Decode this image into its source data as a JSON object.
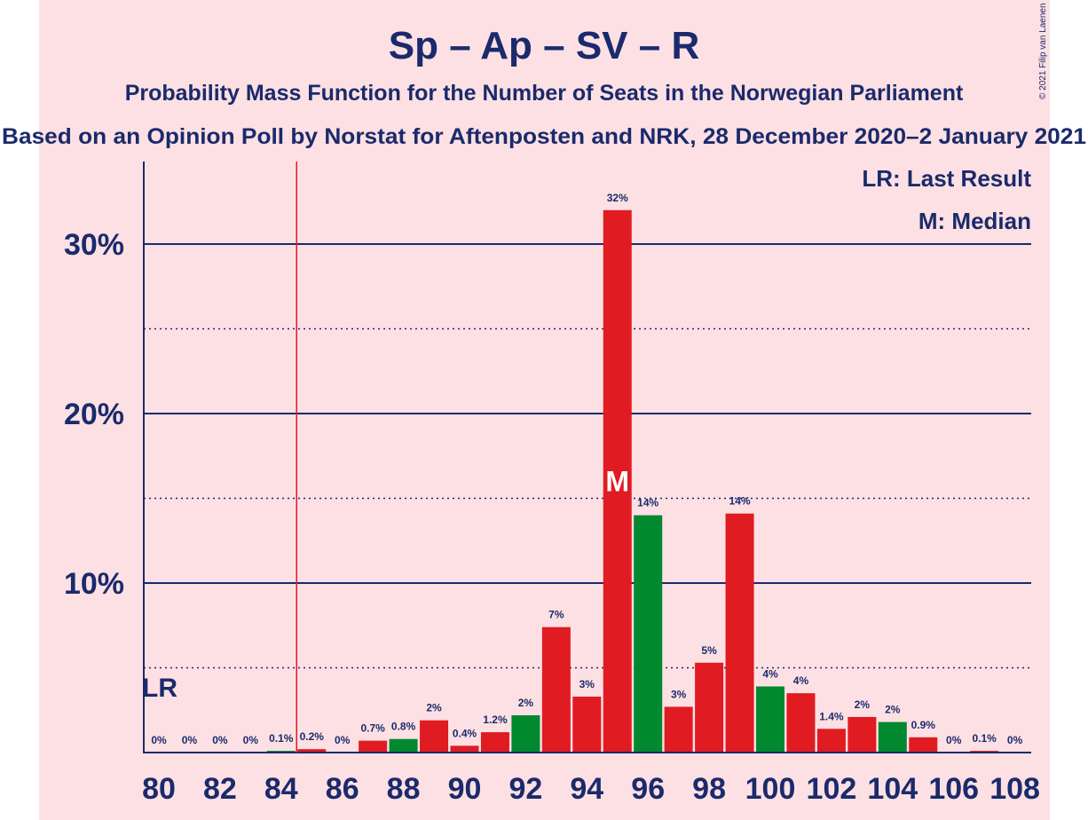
{
  "chart_data": {
    "type": "bar",
    "title": "Sp – Ap – SV – R",
    "subtitle": "Probability Mass Function for the Number of Seats in the Norwegian Parliament",
    "subtitle2": "Based on an Opinion Poll by Norstat for Aftenposten and NRK, 28 December 2020–2 January 2021",
    "copyright": "© 2021 Filip van Laenen",
    "legend": {
      "lr": "LR: Last Result",
      "m": "M: Median"
    },
    "lr_marker": "LR",
    "median_marker": "M",
    "last_result_seat": 85,
    "median_seat": 95,
    "ylim": [
      0,
      34
    ],
    "y_ticks": [
      {
        "value": 10,
        "label": "10%"
      },
      {
        "value": 20,
        "label": "20%"
      },
      {
        "value": 30,
        "label": "30%"
      }
    ],
    "x_ticks": [
      "80",
      "82",
      "84",
      "86",
      "88",
      "90",
      "92",
      "94",
      "96",
      "98",
      "100",
      "102",
      "104",
      "106",
      "108"
    ],
    "colors": {
      "red": "#e01b22",
      "green": "#00892f",
      "navy": "#1a2a6c",
      "panel": "#fde0e3"
    },
    "bars": [
      {
        "seat": 80,
        "value": 0,
        "label": "0%",
        "color": "red"
      },
      {
        "seat": 81,
        "value": 0,
        "label": "0%",
        "color": "red"
      },
      {
        "seat": 82,
        "value": 0,
        "label": "0%",
        "color": "red"
      },
      {
        "seat": 83,
        "value": 0,
        "label": "0%",
        "color": "red"
      },
      {
        "seat": 84,
        "value": 0.1,
        "label": "0.1%",
        "color": "green"
      },
      {
        "seat": 85,
        "value": 0.2,
        "label": "0.2%",
        "color": "red"
      },
      {
        "seat": 86,
        "value": 0,
        "label": "0%",
        "color": "red"
      },
      {
        "seat": 87,
        "value": 0.7,
        "label": "0.7%",
        "color": "red"
      },
      {
        "seat": 88,
        "value": 0.8,
        "label": "0.8%",
        "color": "green"
      },
      {
        "seat": 89,
        "value": 1.9,
        "label": "2%",
        "color": "red"
      },
      {
        "seat": 90,
        "value": 0.4,
        "label": "0.4%",
        "color": "red"
      },
      {
        "seat": 91,
        "value": 1.2,
        "label": "1.2%",
        "color": "red"
      },
      {
        "seat": 92,
        "value": 2.2,
        "label": "2%",
        "color": "green"
      },
      {
        "seat": 93,
        "value": 7.4,
        "label": "7%",
        "color": "red"
      },
      {
        "seat": 94,
        "value": 3.3,
        "label": "3%",
        "color": "red"
      },
      {
        "seat": 95,
        "value": 32,
        "label": "32%",
        "color": "red"
      },
      {
        "seat": 96,
        "value": 14,
        "label": "14%",
        "color": "green"
      },
      {
        "seat": 97,
        "value": 2.7,
        "label": "3%",
        "color": "red"
      },
      {
        "seat": 98,
        "value": 5.3,
        "label": "5%",
        "color": "red"
      },
      {
        "seat": 99,
        "value": 14.1,
        "label": "14%",
        "color": "red"
      },
      {
        "seat": 100,
        "value": 3.9,
        "label": "4%",
        "color": "green"
      },
      {
        "seat": 101,
        "value": 3.5,
        "label": "4%",
        "color": "red"
      },
      {
        "seat": 102,
        "value": 1.4,
        "label": "1.4%",
        "color": "red"
      },
      {
        "seat": 103,
        "value": 2.1,
        "label": "2%",
        "color": "red"
      },
      {
        "seat": 104,
        "value": 1.8,
        "label": "2%",
        "color": "green"
      },
      {
        "seat": 105,
        "value": 0.9,
        "label": "0.9%",
        "color": "red"
      },
      {
        "seat": 106,
        "value": 0,
        "label": "0%",
        "color": "red"
      },
      {
        "seat": 107,
        "value": 0.1,
        "label": "0.1%",
        "color": "red"
      },
      {
        "seat": 108,
        "value": 0,
        "label": "0%",
        "color": "green"
      }
    ]
  }
}
